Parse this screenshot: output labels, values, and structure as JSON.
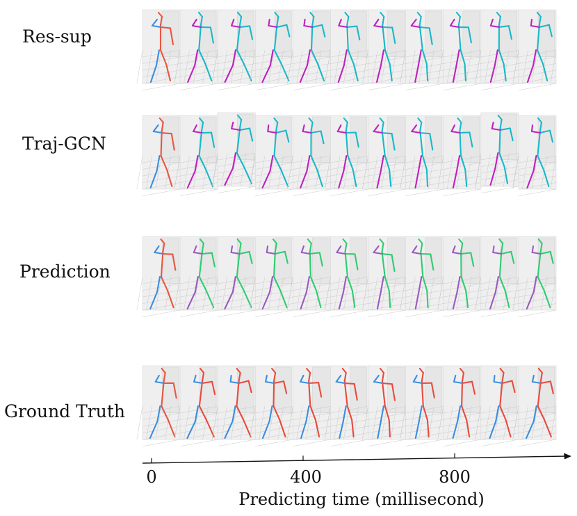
{
  "rows": [
    {
      "label": "Res-sup",
      "trail_color": "#c020c0",
      "lead_color": "#19b8c8"
    },
    {
      "label": "Traj-GCN",
      "trail_color": "#c020c0",
      "lead_color": "#19b8c8"
    },
    {
      "label": "Prediction",
      "trail_color": "#9a5ac0",
      "lead_color": "#2ecc71"
    },
    {
      "label": "Ground Truth",
      "trail_color": "#3a8ee0",
      "lead_color": "#e84a3c"
    }
  ],
  "observed_colors": {
    "trail": "#3a8ee0",
    "lead": "#e8553f"
  },
  "frames_per_row": 11,
  "axis": {
    "ticks": [
      "0",
      "400",
      "800"
    ],
    "tick_values": [
      0,
      400,
      800
    ],
    "max_value": 1080,
    "label": "Predicting time (millisecond)"
  }
}
